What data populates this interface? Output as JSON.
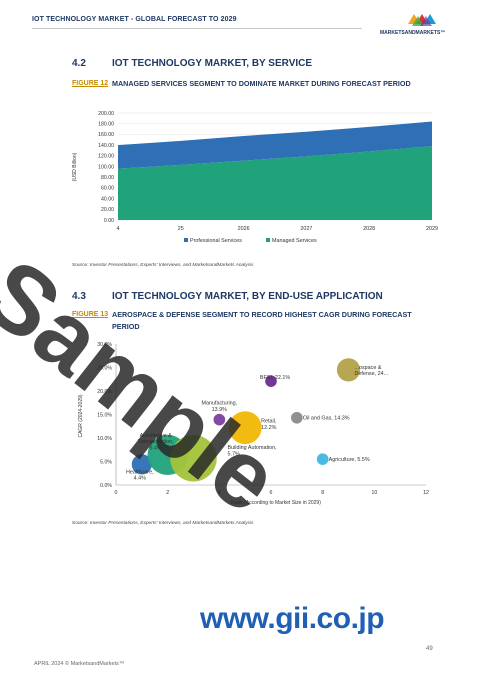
{
  "header": {
    "title": "IOT TECHNOLOGY MARKET - GLOBAL FORECAST TO 2029",
    "logo_text": "MARKETSANDMARKETS™"
  },
  "section1": {
    "number": "4.2",
    "title": "IOT TECHNOLOGY MARKET, BY SERVICE"
  },
  "figure1": {
    "label": "FIGURE 12",
    "title": "MANAGED SERVICES SEGMENT TO DOMINATE MARKET DURING FORECAST PERIOD"
  },
  "source1": {
    "prefix": "Source: ",
    "italic": "Investor Presentations, Experts' Interviews, and MarketsandMarkets Analysis"
  },
  "section2": {
    "number": "4.3",
    "title": "IOT TECHNOLOGY MARKET, BY END-USE APPLICATION"
  },
  "figure2": {
    "label": "FIGURE 13",
    "title": "AEROSPACE & DEFENSE SEGMENT TO RECORD HIGHEST CAGR DURING FORECAST PERIOD"
  },
  "source2": {
    "prefix": "Source: ",
    "italic": "Investor Presentations, Experts' Interviews, and MarketsandMarkets Analysis"
  },
  "watermark": "Sample",
  "gii": "www.gii.co.jp",
  "footer": {
    "date": "APRIL 2024 © MarketsandMarkets™",
    "page": "49"
  },
  "chart_data": [
    {
      "type": "area",
      "ylabel": "(USD Billion)",
      "ylim": [
        0,
        200
      ],
      "yticks": [
        "0.00",
        "20.00",
        "40.00",
        "60.00",
        "80.00",
        "100.00",
        "120.00",
        "140.00",
        "160.00",
        "180.00",
        "200.00"
      ],
      "categories": [
        "2024",
        "2025",
        "2026",
        "2027",
        "2028",
        "2029"
      ],
      "x_tick_labels": [
        "4",
        "25",
        "2026",
        "2027",
        "2028",
        "2029"
      ],
      "legend_position": "bottom",
      "series": [
        {
          "name": "Managed Services",
          "color": "#20a37b",
          "values": [
            96,
            103,
            111,
            119,
            128,
            138
          ]
        },
        {
          "name": "Professional Services",
          "color": "#2e6fb5",
          "values": [
            44,
            45,
            46,
            46,
            46,
            46
          ]
        }
      ]
    },
    {
      "type": "scatter",
      "xlabel": "Rank (According to Market Size in 2029)",
      "ylabel": "CAGR (2024-2029)",
      "xlim": [
        0,
        12
      ],
      "ylim": [
        0,
        30
      ],
      "xticks": [
        "0",
        "2",
        "4",
        "6",
        "8",
        "10",
        "12"
      ],
      "yticks": [
        "0.0%",
        "5.0%",
        "10.0%",
        "15.0%",
        "20.0%",
        "25.0%",
        "30.0%"
      ],
      "points": [
        {
          "label_lines": [
            "Healthcare,",
            "4.4%"
          ],
          "x": 1,
          "y": 4.4,
          "size": 0.15,
          "color": "#2e6fb5"
        },
        {
          "label_lines": [
            "Automotive &",
            "Transportation,",
            "6.4%"
          ],
          "x": 2,
          "y": 6.4,
          "size": 0.6,
          "color": "#20a37b"
        },
        {
          "label_lines": [
            "Building Automation,",
            "5.7%"
          ],
          "x": 3,
          "y": 5.7,
          "size": 0.8,
          "color": "#a3c33a"
        },
        {
          "label_lines": [
            "Manufacturing,",
            "13.9%"
          ],
          "x": 4,
          "y": 13.9,
          "size": 0.05,
          "color": "#7b3fa0"
        },
        {
          "label_lines": [
            "Retail,",
            "12.2%"
          ],
          "x": 5,
          "y": 12.2,
          "size": 0.4,
          "color": "#f2b705"
        },
        {
          "label_lines": [
            "BFSI, 22.1%"
          ],
          "x": 6,
          "y": 22.1,
          "size": 0.05,
          "color": "#6b2c91"
        },
        {
          "label_lines": [
            "Oil and Gas, 14.3%"
          ],
          "x": 7,
          "y": 14.3,
          "size": 0.05,
          "color": "#8a8a8a"
        },
        {
          "label_lines": [
            "Agriculture, 5.5%"
          ],
          "x": 8,
          "y": 5.5,
          "size": 0.05,
          "color": "#3fb6e0"
        },
        {
          "label_lines": [
            "...ospace &",
            "Defense, 24..."
          ],
          "x": 9,
          "y": 24.5,
          "size": 0.2,
          "color": "#b3a24a"
        }
      ]
    }
  ]
}
